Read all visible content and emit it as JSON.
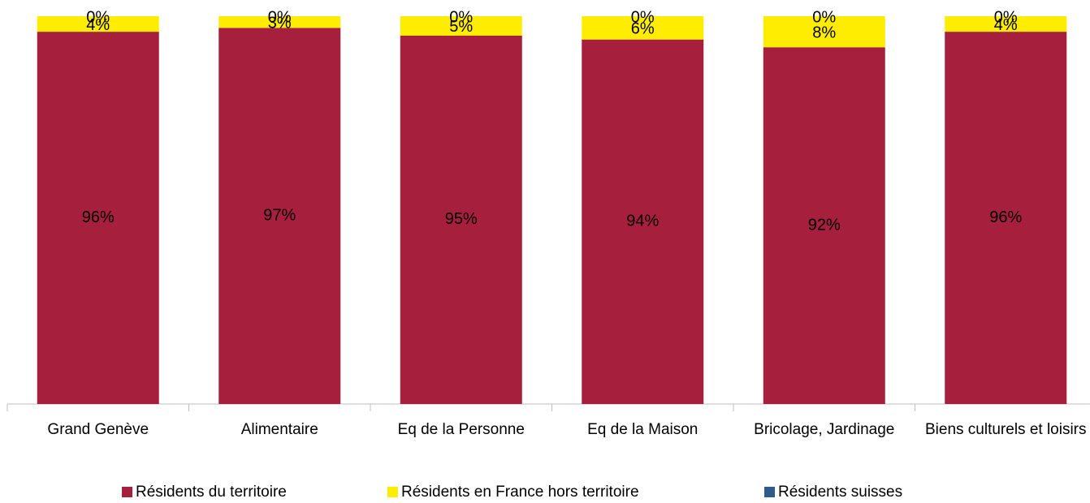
{
  "chart_data": {
    "type": "stacked_bar",
    "categories": [
      "Grand Genève",
      "Alimentaire",
      "Eq de la Personne",
      "Eq de la Maison",
      "Bricolage, Jardinage",
      "Biens culturels et loisirs"
    ],
    "series": [
      {
        "name": "Résidents du territoire",
        "color": "#A6203E",
        "values": [
          96,
          97,
          95,
          94,
          92,
          96
        ],
        "value_labels": [
          "96%",
          "97%",
          "95%",
          "94%",
          "92%",
          "96%"
        ]
      },
      {
        "name": "Résidents en France hors territoire",
        "color": "#FFED00",
        "values": [
          4,
          3,
          5,
          6,
          8,
          4
        ],
        "value_labels": [
          "4%",
          "3%",
          "5%",
          "6%",
          "8%",
          "4%"
        ]
      },
      {
        "name": "Résidents suisses",
        "color": "#2E5A8C",
        "values": [
          0,
          0,
          0,
          0,
          0,
          0
        ],
        "value_labels": [
          "0%",
          "0%",
          "0%",
          "0%",
          "0%",
          "0%"
        ]
      }
    ],
    "ylim": [
      0,
      100
    ]
  }
}
